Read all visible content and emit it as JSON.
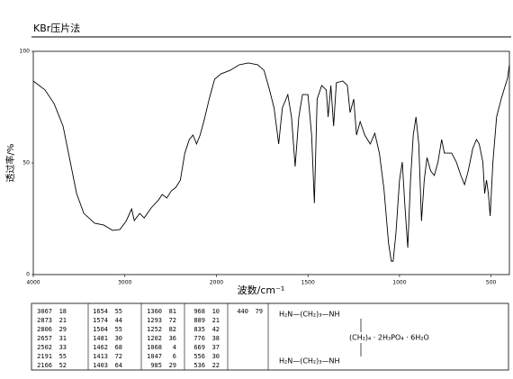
{
  "chart_data": {
    "type": "line",
    "title": "KBr压片法",
    "xlabel": "波数/cm⁻¹",
    "ylabel": "透过率/%",
    "xlim": [
      4000,
      400
    ],
    "xbreak": 2000,
    "xbreak_ratio": 2,
    "xticks": [
      4000,
      3000,
      2000,
      1500,
      1000,
      500
    ],
    "ylim": [
      0,
      100
    ],
    "yticks": [
      0,
      50,
      100
    ],
    "grid": false,
    "x": [
      4000,
      3872,
      3773,
      3675,
      3596,
      3527,
      3448,
      3330,
      3232,
      3133,
      3054,
      2985,
      2926,
      2897,
      2838,
      2789,
      2710,
      2631,
      2592,
      2542,
      2493,
      2444,
      2394,
      2345,
      2296,
      2256,
      2217,
      2178,
      2138,
      2079,
      2020,
      1975,
      1925,
      1875,
      1825,
      1775,
      1740,
      1710,
      1685,
      1660,
      1640,
      1610,
      1590,
      1570,
      1550,
      1530,
      1500,
      1480,
      1465,
      1450,
      1425,
      1400,
      1390,
      1375,
      1360,
      1345,
      1310,
      1285,
      1270,
      1250,
      1235,
      1215,
      1190,
      1160,
      1135,
      1110,
      1085,
      1060,
      1045,
      1035,
      1020,
      1000,
      985,
      970,
      955,
      940,
      925,
      910,
      895,
      880,
      865,
      850,
      830,
      810,
      790,
      770,
      755,
      735,
      715,
      690,
      665,
      645,
      625,
      600,
      580,
      565,
      545,
      535,
      525,
      515,
      505,
      490,
      470,
      445,
      425,
      410,
      400
    ],
    "series": [
      {
        "name": "spectrum",
        "color": "#000000",
        "values": [
          86.7,
          82.7,
          76.6,
          66.5,
          50.4,
          36.3,
          27.4,
          23,
          22.2,
          19.8,
          20.2,
          24,
          29.4,
          24.2,
          27.4,
          25.4,
          30,
          33.5,
          35.9,
          34.3,
          37.5,
          39,
          42.3,
          54.4,
          60.5,
          62.5,
          58.5,
          62.5,
          68.5,
          78.6,
          87.5,
          89.9,
          91.5,
          94,
          94.8,
          94,
          91.5,
          82.7,
          74.6,
          58.5,
          74.6,
          80.6,
          70.6,
          48.4,
          70.6,
          80.6,
          80.6,
          62.5,
          32,
          78.6,
          84.7,
          82.7,
          70.6,
          84.7,
          66.5,
          85.9,
          86.7,
          84.7,
          72.6,
          78.6,
          62.5,
          68.5,
          62.5,
          58.5,
          63.3,
          54.4,
          38.3,
          14.1,
          6,
          6,
          18.1,
          42.3,
          50.4,
          30,
          12,
          42.3,
          62.5,
          70.6,
          58.5,
          24,
          42.3,
          52.4,
          46.4,
          44.4,
          50.4,
          60.5,
          54.4,
          54.4,
          54.4,
          50.4,
          44.4,
          40.3,
          46.4,
          56.5,
          60.5,
          58.5,
          50.4,
          36.3,
          42.3,
          36.3,
          26.2,
          50.4,
          70.6,
          78.6,
          84,
          88,
          94
        ]
      }
    ]
  },
  "table": {
    "columns": [
      [
        [
          3067,
          18
        ],
        [
          2873,
          21
        ],
        [
          2806,
          29
        ],
        [
          2657,
          31
        ],
        [
          2502,
          33
        ],
        [
          2191,
          55
        ],
        [
          2166,
          52
        ]
      ],
      [
        [
          1654,
          55
        ],
        [
          1574,
          44
        ],
        [
          1504,
          55
        ],
        [
          1481,
          30
        ],
        [
          1462,
          68
        ],
        [
          1413,
          72
        ],
        [
          1403,
          64
        ]
      ],
      [
        [
          1360,
          81
        ],
        [
          1293,
          72
        ],
        [
          1252,
          82
        ],
        [
          1202,
          36
        ],
        [
          1068,
          4
        ],
        [
          1047,
          6
        ],
        [
          985,
          29
        ]
      ],
      [
        [
          968,
          10
        ],
        [
          889,
          21
        ],
        [
          835,
          42
        ],
        [
          776,
          38
        ],
        [
          669,
          37
        ],
        [
          556,
          30
        ],
        [
          536,
          22
        ]
      ],
      [
        [
          440,
          79
        ]
      ]
    ]
  },
  "formula": {
    "top": "H₂N—(CH₂)₃—NH",
    "middle": "(CH₂)₄ · 2H₃PO₄ · 6H₂O",
    "bottom": "H₂N—(CH₂)₃—NH"
  }
}
